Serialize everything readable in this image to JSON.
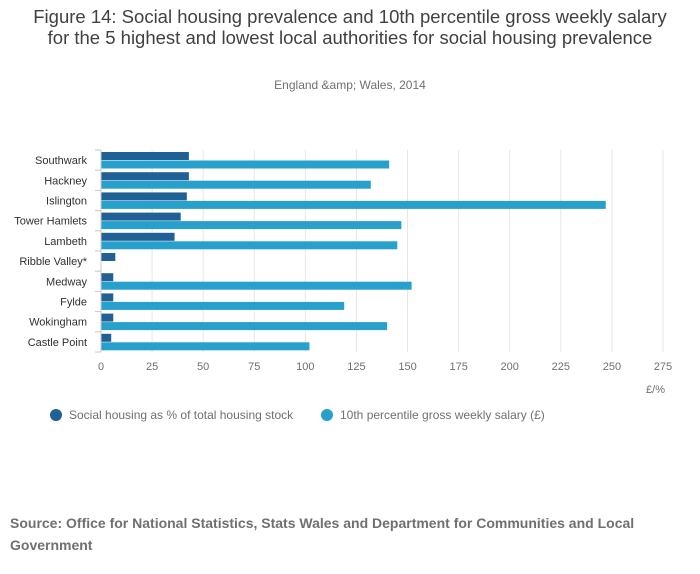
{
  "chart_data": {
    "type": "bar",
    "orientation": "horizontal",
    "title": "Figure 14: Social housing prevalence and 10th percentile gross weekly salary for the 5 highest and lowest local authorities for social housing prevalence",
    "subtitle": "England &amp; Wales, 2014",
    "xlabel": "£/%",
    "xlim": [
      0,
      275
    ],
    "xticks": [
      0,
      25,
      50,
      75,
      100,
      125,
      150,
      175,
      200,
      225,
      250,
      275
    ],
    "grid": true,
    "legend_position": "bottom-left",
    "categories": [
      "Southwark",
      "Hackney",
      "Islington",
      "Tower Hamlets",
      "Lambeth",
      "Ribble Valley*",
      "Medway",
      "Fylde",
      "Wokingham",
      "Castle Point"
    ],
    "series": [
      {
        "name": "Social housing as % of total housing stock",
        "color": "#206095",
        "values": [
          43,
          43,
          42,
          39,
          36,
          7,
          6,
          6,
          6,
          5
        ]
      },
      {
        "name": "10th percentile gross weekly salary (£)",
        "color": "#27a0cc",
        "values": [
          141,
          132,
          247,
          147,
          145,
          null,
          152,
          119,
          140,
          102
        ]
      }
    ]
  },
  "source": "Source: Office for National Statistics, Stats Wales and Department for Communities and Local Government"
}
